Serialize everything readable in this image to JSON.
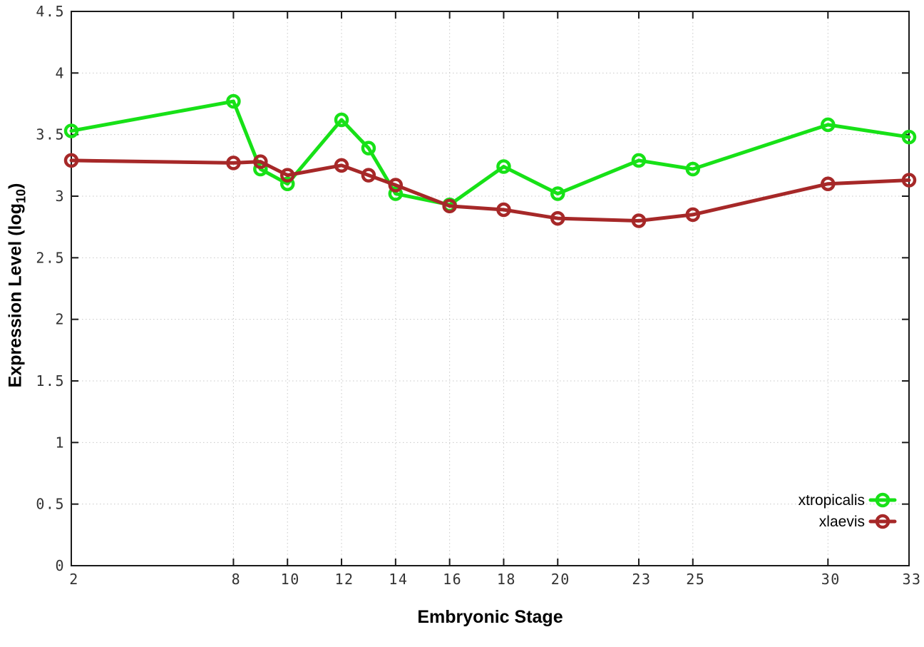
{
  "chart_data": {
    "type": "line",
    "title": "",
    "xlabel": "Embryonic Stage",
    "ylabel": "Expression Level (log10)",
    "ylabel_parts": {
      "prefix": "Expression Level (log",
      "sub": "10",
      "suffix": ")"
    },
    "xlim": [
      2,
      33
    ],
    "ylim": [
      0,
      4.5
    ],
    "x": [
      2,
      8,
      9,
      10,
      12,
      13,
      14,
      16,
      18,
      20,
      23,
      25,
      30,
      33
    ],
    "xticks": [
      2,
      8,
      10,
      12,
      14,
      16,
      18,
      20,
      23,
      25,
      30,
      33
    ],
    "xtick_labels": [
      "2",
      "8",
      "10",
      "12",
      "14",
      "16",
      "18",
      "20",
      "23",
      "25",
      "30",
      "33"
    ],
    "yticks": [
      0,
      0.5,
      1,
      1.5,
      2,
      2.5,
      3,
      3.5,
      4,
      4.5
    ],
    "ytick_labels": [
      "0",
      "0.5",
      "1",
      "1.5",
      "2",
      "2.5",
      "3",
      "3.5",
      "4",
      "4.5"
    ],
    "grid": true,
    "legend": {
      "position": "bottom-right",
      "entries": [
        "xtropicalis",
        "xlaevis"
      ]
    },
    "series": [
      {
        "name": "xtropicalis",
        "color": "#17e117",
        "values": [
          3.53,
          3.77,
          3.22,
          3.1,
          3.62,
          3.39,
          3.02,
          2.93,
          3.24,
          3.02,
          3.29,
          3.22,
          3.58,
          3.48
        ]
      },
      {
        "name": "xlaevis",
        "color": "#a62828",
        "values": [
          3.29,
          3.27,
          3.28,
          3.17,
          3.25,
          3.17,
          3.09,
          2.92,
          2.89,
          2.82,
          2.8,
          2.85,
          3.1,
          3.13
        ]
      }
    ],
    "colors": {
      "grid": "#c8c8c8",
      "border": "#1a1a1a",
      "tick_label": "#333333",
      "background": "#ffffff"
    }
  }
}
